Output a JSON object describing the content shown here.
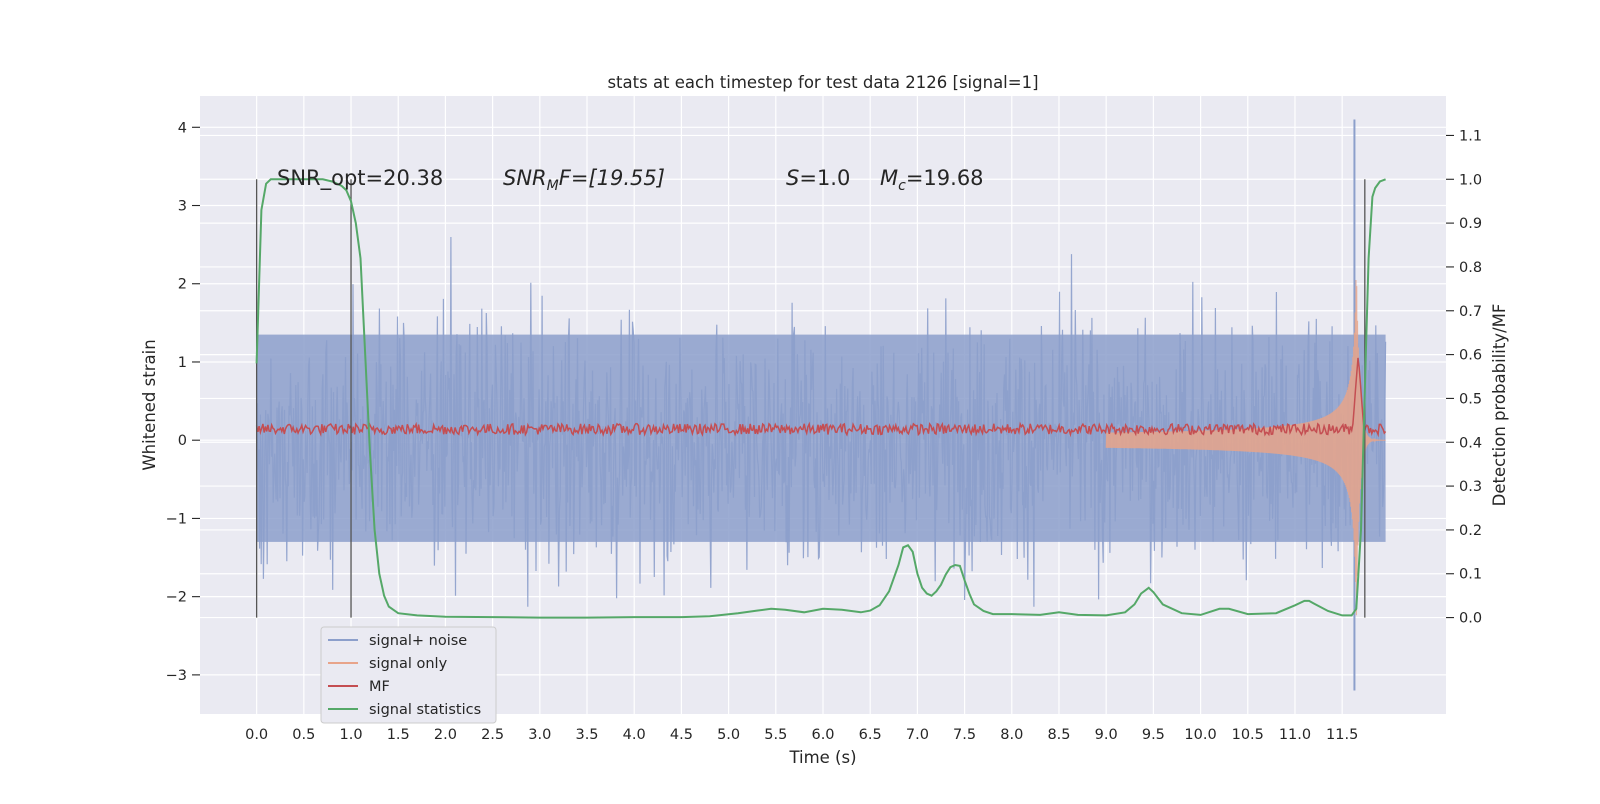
{
  "chart_data": {
    "type": "line",
    "title": "stats at each timestep for test data 2126 [signal=1]",
    "xlabel": "Time (s)",
    "ylabel": "Whitened strain",
    "y2label": "Detection probability/MF",
    "xlim": [
      -0.6,
      12.6
    ],
    "ylim": [
      -3.5,
      4.4
    ],
    "y2lim": [
      -0.22,
      1.19
    ],
    "grid": true,
    "legend_position": "lower-left",
    "x_ticks": [
      "0.0",
      "0.5",
      "1.0",
      "1.5",
      "2.0",
      "2.5",
      "3.0",
      "3.5",
      "4.0",
      "4.5",
      "5.0",
      "5.5",
      "6.0",
      "6.5",
      "7.0",
      "7.5",
      "8.0",
      "8.5",
      "9.0",
      "9.5",
      "10.0",
      "10.5",
      "11.0",
      "11.5"
    ],
    "y_ticks": [
      "4",
      "3",
      "2",
      "1",
      "0",
      "−1",
      "−2",
      "−3"
    ],
    "y2_ticks": [
      "1.1",
      "1.0",
      "0.9",
      "0.8",
      "0.7",
      "0.6",
      "0.5",
      "0.4",
      "0.3",
      "0.2",
      "0.1",
      "0.0"
    ],
    "annotations": {
      "snr_opt": "SNR_opt=20.38",
      "snr_mf_label": "SNR",
      "snr_mf_sub": "M",
      "snr_mf_value": "F=[19.55]",
      "s_label": "S",
      "s_value": "=1.0",
      "mc_label": "M",
      "mc_sub": "c",
      "mc_value": "=19.68"
    },
    "vertical_markers_x": [
      0.0,
      1.0,
      11.74
    ],
    "series": [
      {
        "name": "signal+ noise",
        "color": "#8c9fcb",
        "axis": "left",
        "x_range": [
          0.0,
          11.96
        ],
        "envelope": {
          "core_lower": -1.3,
          "core_upper": 1.35,
          "max": 4.1,
          "min": -3.2
        }
      },
      {
        "name": "signal only",
        "color": "#e8a48a",
        "axis": "left",
        "x_range": [
          9.0,
          11.96
        ],
        "amplitude_growth": {
          "start": 0.04,
          "peak_time": 11.65,
          "peak_amplitude": 2.7
        }
      },
      {
        "name": "MF",
        "color": "#c44e52",
        "axis": "right",
        "x_range": [
          0.0,
          11.96
        ],
        "baseline": 0.43,
        "peak": {
          "x": 11.67,
          "y": 0.6
        }
      },
      {
        "name": "signal statistics",
        "color": "#55a868",
        "axis": "right",
        "x": [
          0.0,
          0.05,
          0.1,
          0.15,
          0.2,
          0.3,
          0.5,
          0.7,
          0.8,
          0.85,
          0.9,
          0.95,
          1.0,
          1.05,
          1.1,
          1.15,
          1.2,
          1.25,
          1.3,
          1.35,
          1.4,
          1.5,
          1.7,
          2.0,
          2.5,
          3.0,
          3.5,
          4.0,
          4.5,
          4.8,
          5.1,
          5.3,
          5.45,
          5.6,
          5.8,
          6.0,
          6.2,
          6.4,
          6.5,
          6.6,
          6.7,
          6.8,
          6.85,
          6.9,
          6.95,
          7.0,
          7.05,
          7.1,
          7.15,
          7.2,
          7.25,
          7.3,
          7.35,
          7.4,
          7.45,
          7.5,
          7.55,
          7.6,
          7.7,
          7.8,
          8.0,
          8.3,
          8.5,
          8.7,
          9.0,
          9.2,
          9.3,
          9.37,
          9.45,
          9.5,
          9.6,
          9.8,
          10.0,
          10.2,
          10.3,
          10.5,
          10.8,
          11.0,
          11.1,
          11.15,
          11.2,
          11.35,
          11.5,
          11.6,
          11.65,
          11.7,
          11.75,
          11.78,
          11.82,
          11.85,
          11.9,
          11.96
        ],
        "y": [
          0.58,
          0.93,
          0.99,
          1.0,
          1.0,
          1.0,
          1.0,
          1.0,
          0.995,
          0.99,
          0.985,
          0.975,
          0.95,
          0.9,
          0.82,
          0.6,
          0.38,
          0.2,
          0.1,
          0.05,
          0.025,
          0.01,
          0.005,
          0.002,
          0.001,
          0.0,
          0.0,
          0.001,
          0.001,
          0.003,
          0.01,
          0.016,
          0.02,
          0.018,
          0.012,
          0.02,
          0.018,
          0.012,
          0.016,
          0.028,
          0.06,
          0.12,
          0.16,
          0.165,
          0.15,
          0.1,
          0.068,
          0.055,
          0.05,
          0.06,
          0.075,
          0.098,
          0.115,
          0.12,
          0.118,
          0.085,
          0.055,
          0.03,
          0.015,
          0.008,
          0.008,
          0.006,
          0.012,
          0.006,
          0.005,
          0.012,
          0.03,
          0.055,
          0.068,
          0.058,
          0.03,
          0.01,
          0.006,
          0.02,
          0.02,
          0.008,
          0.01,
          0.028,
          0.038,
          0.038,
          0.032,
          0.015,
          0.005,
          0.005,
          0.02,
          0.2,
          0.6,
          0.82,
          0.96,
          0.98,
          0.995,
          1.0
        ]
      }
    ]
  }
}
